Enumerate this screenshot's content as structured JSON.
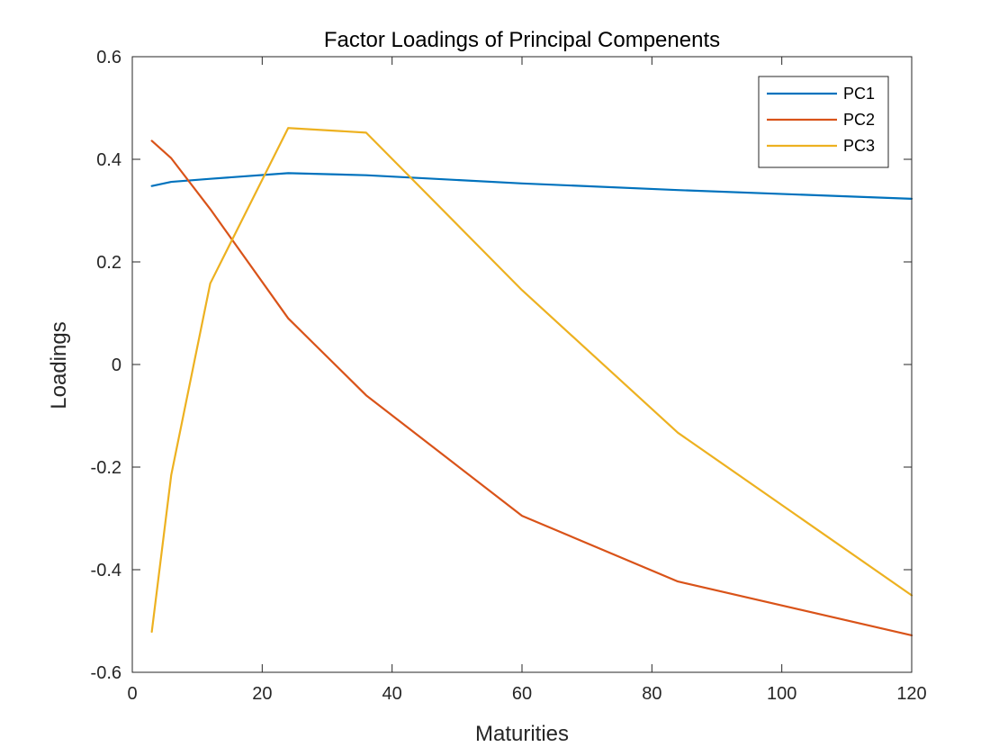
{
  "chart_data": {
    "type": "line",
    "title": "Factor Loadings of Principal Compenents",
    "xlabel": "Maturities",
    "ylabel": "Loadings",
    "xlim": [
      0,
      120
    ],
    "ylim": [
      -0.6,
      0.6
    ],
    "xticks": [
      0,
      20,
      40,
      60,
      80,
      100,
      120
    ],
    "xtick_labels": [
      "0",
      "20",
      "40",
      "60",
      "80",
      "100",
      "120"
    ],
    "yticks": [
      -0.6,
      -0.4,
      -0.2,
      0,
      0.2,
      0.4,
      0.6
    ],
    "ytick_labels": [
      "-0.6",
      "-0.4",
      "-0.2",
      "0",
      "0.2",
      "0.4",
      "0.6"
    ],
    "grid": false,
    "legend_position": "top-right",
    "x": [
      3,
      6,
      12,
      24,
      36,
      60,
      84,
      120
    ],
    "series": [
      {
        "name": "PC1",
        "color": "#0072BD",
        "values": [
          0.348,
          0.356,
          0.362,
          0.373,
          0.369,
          0.353,
          0.34,
          0.323
        ]
      },
      {
        "name": "PC2",
        "color": "#D95319",
        "values": [
          0.436,
          0.402,
          0.303,
          0.09,
          -0.06,
          -0.295,
          -0.423,
          -0.528
        ]
      },
      {
        "name": "PC3",
        "color": "#EDB120",
        "values": [
          -0.521,
          -0.215,
          0.158,
          0.461,
          0.452,
          0.145,
          -0.133,
          -0.45
        ]
      }
    ]
  }
}
